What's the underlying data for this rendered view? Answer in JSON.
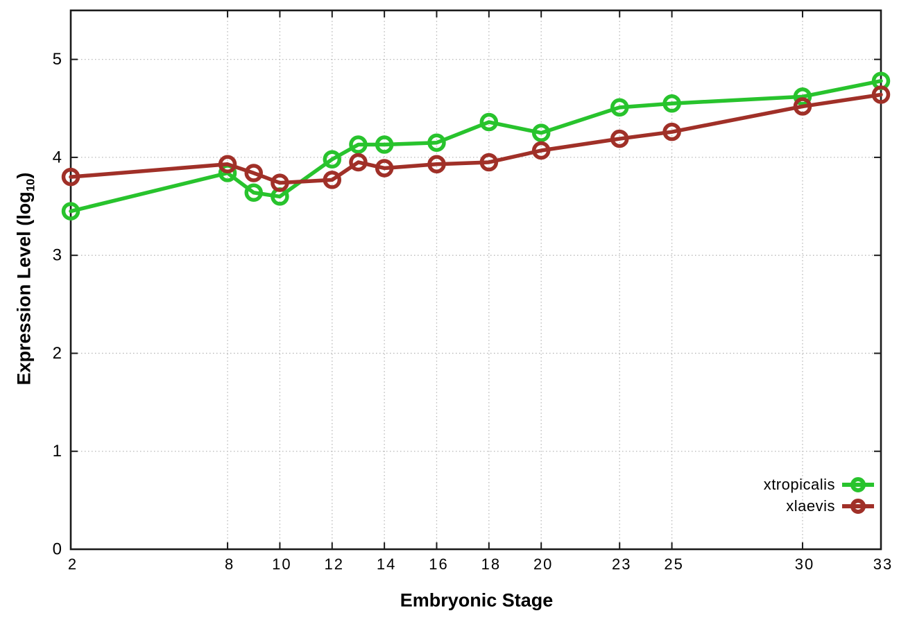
{
  "chart_data": {
    "type": "line",
    "title": "",
    "xlabel": "Embryonic Stage",
    "ylabel": "Expression Level (log10)",
    "ylabel_parts": {
      "pre": "Expression Level (log",
      "sub": "10",
      "post": ")"
    },
    "x": [
      2,
      8,
      9,
      10,
      12,
      13,
      14,
      16,
      18,
      20,
      23,
      25,
      30,
      33
    ],
    "xticks": [
      2,
      8,
      10,
      12,
      14,
      16,
      18,
      20,
      23,
      25,
      30,
      33
    ],
    "yticks": [
      0,
      1,
      2,
      3,
      4,
      5
    ],
    "xlim": [
      2,
      33
    ],
    "ylim": [
      0,
      5.5
    ],
    "grid": true,
    "legend_position": "bottom-right",
    "series": [
      {
        "name": "xtropicalis",
        "color": "#28c32d",
        "values": [
          3.45,
          3.84,
          3.64,
          3.6,
          3.98,
          4.13,
          4.13,
          4.15,
          4.36,
          4.25,
          4.51,
          4.55,
          4.62,
          4.78
        ]
      },
      {
        "name": "xlaevis",
        "color": "#a03028",
        "values": [
          3.8,
          3.93,
          3.84,
          3.74,
          3.77,
          3.95,
          3.89,
          3.93,
          3.95,
          4.07,
          4.19,
          4.26,
          4.52,
          4.64
        ]
      }
    ],
    "colors": {
      "axis": "#1a1a1a",
      "grid": "#b8b8b8",
      "tick_label": "#000000",
      "background": "#ffffff"
    }
  }
}
